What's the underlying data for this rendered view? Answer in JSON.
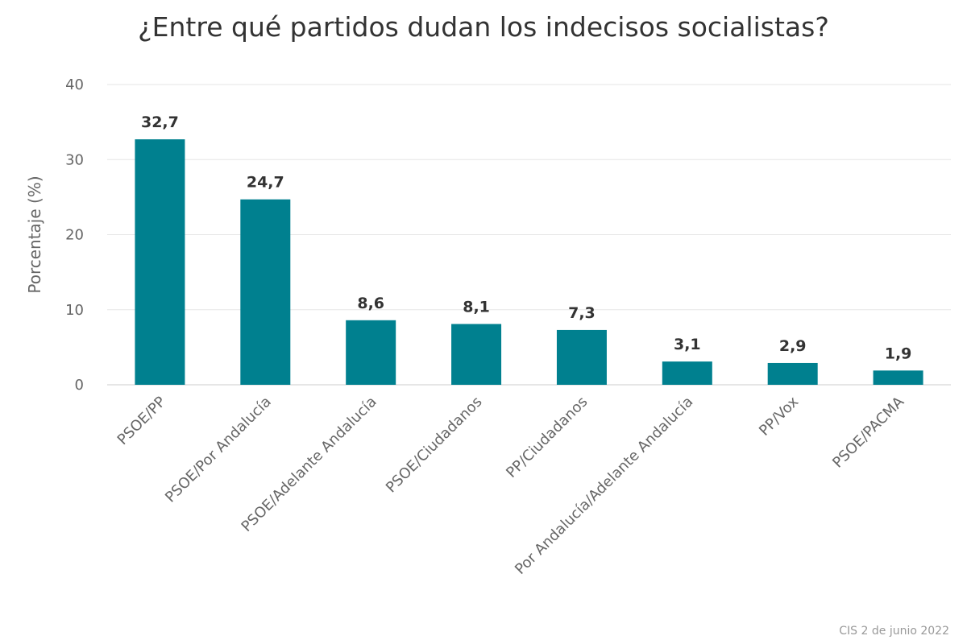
{
  "chart_data": {
    "type": "bar",
    "title": "¿Entre qué partidos dudan los indecisos socialistas?",
    "ylabel": "Porcentaje (%)",
    "xlabel": "",
    "ylim": [
      0,
      40
    ],
    "yticks": [
      0,
      10,
      20,
      30,
      40
    ],
    "grid": true,
    "categories": [
      "PSOE/PP",
      "PSOE/Por Andalucía",
      "PSOE/Adelante Andalucía",
      "PSOE/Ciudadanos",
      "PP/Ciudadanos",
      "Por Andalucía/Adelante Andalucía",
      "PP/Vox",
      "PSOE/PACMA"
    ],
    "values": [
      32.7,
      24.7,
      8.6,
      8.1,
      7.3,
      3.1,
      2.9,
      1.9
    ],
    "value_labels": [
      "32,7",
      "24,7",
      "8,6",
      "8,1",
      "7,3",
      "3,1",
      "2,9",
      "1,9"
    ],
    "bar_color": "#00808f",
    "credits": "CIS 2 de junio 2022"
  }
}
